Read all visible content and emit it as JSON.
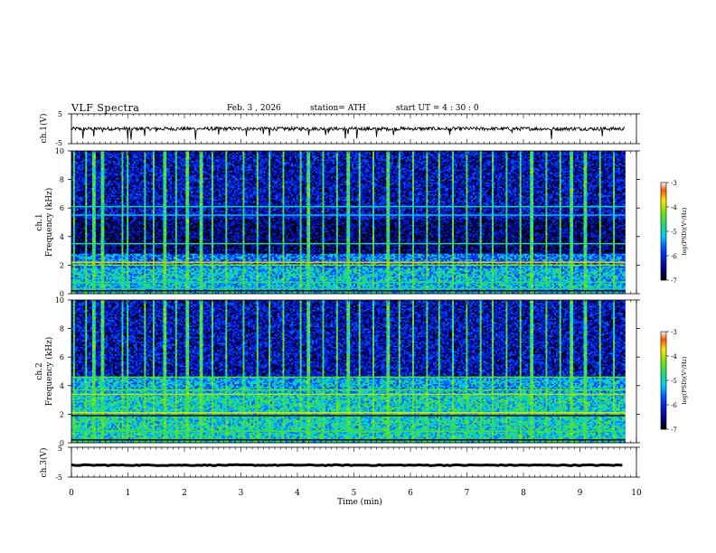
{
  "header": {
    "title": "VLF  Spectra",
    "date": "Feb. 3  , 2026",
    "station": "station= ATH",
    "start_ut": "start  UT  =   4  : 30 : 0"
  },
  "chart_data": [
    {
      "type": "line",
      "panel": "ch1-waveform",
      "ylabel": "ch.1(V)",
      "ylim": [
        -5,
        5
      ],
      "y_ticks": [
        "5",
        "-5"
      ],
      "x_range": [
        0,
        9.8
      ],
      "baseline_value": 0,
      "noise_amplitude": 0.6,
      "spike_times_min": [
        0.2,
        0.4,
        0.55,
        1.0,
        1.05,
        1.3,
        1.5,
        2.2,
        2.6,
        3.1,
        3.4,
        3.5,
        4.2,
        4.5,
        4.55,
        4.85,
        4.9,
        5.05,
        5.4,
        5.7,
        6.7,
        7.8,
        8.5,
        9.4
      ]
    },
    {
      "type": "heatmap",
      "panel": "ch1-spectrogram",
      "ylabel": "ch.1\nFrequency  (kHz)",
      "ylim": [
        0,
        10
      ],
      "y_ticks": [
        "0",
        "2",
        "4",
        "6",
        "8",
        "10"
      ],
      "x_range": [
        0,
        9.8
      ],
      "colorbar": {
        "label": "log(PSD)(V²/Hz)",
        "range": [
          -7,
          -3
        ],
        "ticks": [
          "-3",
          "-4",
          "-5",
          "-6",
          "-7"
        ]
      },
      "background_by_band": [
        {
          "from_khz": 0,
          "to_khz": 1.8,
          "log_psd": -5.2
        },
        {
          "from_khz": 1.8,
          "to_khz": 2.8,
          "log_psd": -5.6
        },
        {
          "from_khz": 2.8,
          "to_khz": 5.2,
          "log_psd": -6.6
        },
        {
          "from_khz": 5.2,
          "to_khz": 10,
          "log_psd": -6.3
        }
      ],
      "tone_lines_khz": [
        {
          "f": 0.2,
          "log_psd": -7.0
        },
        {
          "f": 0.35,
          "log_psd": -5.0
        },
        {
          "f": 0.8,
          "log_psd": -4.8
        },
        {
          "f": 2.0,
          "log_psd": -4.2
        },
        {
          "f": 2.2,
          "log_psd": -3.6
        },
        {
          "f": 3.5,
          "log_psd": -4.8
        },
        {
          "f": 5.5,
          "log_psd": -5.2
        },
        {
          "f": 6.1,
          "log_psd": -5.0
        }
      ],
      "impulse_times_min": [
        0.05,
        0.25,
        0.4,
        0.55,
        0.9,
        1.0,
        1.3,
        1.45,
        1.65,
        1.85,
        2.05,
        2.3,
        2.5,
        2.75,
        3.05,
        3.3,
        3.5,
        3.75,
        4.05,
        4.2,
        4.45,
        4.7,
        4.9,
        5.1,
        5.35,
        5.6,
        5.8,
        6.05,
        6.3,
        6.5,
        6.75,
        7.0,
        7.25,
        7.45,
        7.7,
        7.95,
        8.15,
        8.4,
        8.65,
        8.85,
        9.1,
        9.35,
        9.6
      ]
    },
    {
      "type": "heatmap",
      "panel": "ch2-spectrogram",
      "ylabel": "ch.2\nFrequency  (kHz)",
      "ylim": [
        0,
        10
      ],
      "y_ticks": [
        "0",
        "2",
        "4",
        "6",
        "8",
        "10"
      ],
      "x_range": [
        0,
        9.8
      ],
      "colorbar": {
        "label": "log(PSD)(V²/Hz)",
        "range": [
          -7,
          -3
        ],
        "ticks": [
          "-3",
          "-4",
          "-5",
          "-6",
          "-7"
        ]
      },
      "background_by_band": [
        {
          "from_khz": 0,
          "to_khz": 1.8,
          "log_psd": -5.0
        },
        {
          "from_khz": 1.8,
          "to_khz": 3.4,
          "log_psd": -5.0
        },
        {
          "from_khz": 3.4,
          "to_khz": 4.6,
          "log_psd": -5.3
        },
        {
          "from_khz": 4.6,
          "to_khz": 10,
          "log_psd": -6.3
        }
      ],
      "tone_lines_khz": [
        {
          "f": 0.2,
          "log_psd": -7.0
        },
        {
          "f": 0.8,
          "log_psd": -4.6
        },
        {
          "f": 1.9,
          "log_psd": -7.0
        },
        {
          "f": 2.1,
          "log_psd": -3.8
        },
        {
          "f": 3.4,
          "log_psd": -4.0
        },
        {
          "f": 3.7,
          "log_psd": -4.4
        },
        {
          "f": 4.6,
          "log_psd": -4.4
        }
      ],
      "impulse_times_min": [
        0.05,
        0.25,
        0.4,
        0.55,
        0.9,
        1.0,
        1.3,
        1.45,
        1.65,
        1.85,
        2.05,
        2.3,
        2.5,
        2.75,
        3.05,
        3.3,
        3.5,
        3.75,
        4.05,
        4.2,
        4.45,
        4.7,
        4.9,
        5.1,
        5.35,
        5.6,
        5.8,
        6.05,
        6.3,
        6.5,
        6.75,
        7.0,
        7.25,
        7.45,
        7.7,
        7.95,
        8.15,
        8.4,
        8.65,
        8.85,
        9.1,
        9.35,
        9.6
      ]
    },
    {
      "type": "line",
      "panel": "ch3-waveform",
      "ylabel": "ch.3(V)",
      "ylim": [
        -5,
        5
      ],
      "y_ticks": [
        "5",
        "-5"
      ],
      "x_range": [
        0,
        9.8
      ],
      "baseline_value": -1.0,
      "noise_amplitude": 0.15,
      "spike_times_min": []
    }
  ],
  "x_axis": {
    "label": "Time  (min)",
    "range": [
      0,
      10
    ],
    "ticks": [
      "0",
      "1",
      "2",
      "3",
      "4",
      "5",
      "6",
      "7",
      "8",
      "9",
      "10"
    ]
  }
}
